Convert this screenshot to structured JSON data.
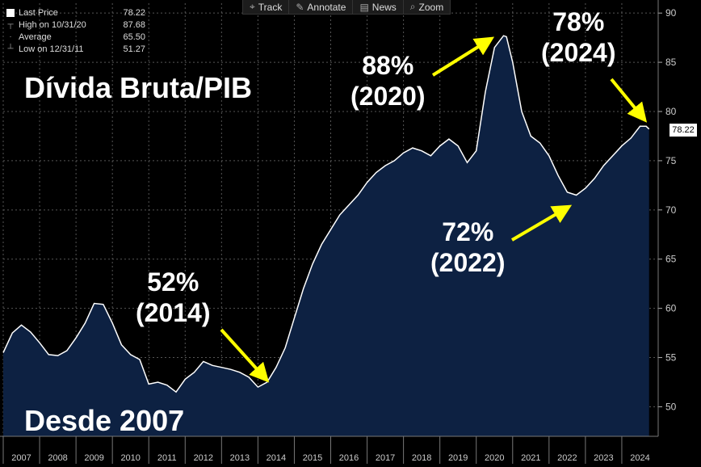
{
  "toolbar": {
    "track": {
      "label": "Track",
      "icon": "crosshair-icon"
    },
    "annotate": {
      "label": "Annotate",
      "icon": "pencil-icon"
    },
    "news": {
      "label": "News",
      "icon": "newspaper-icon"
    },
    "zoom": {
      "label": "Zoom",
      "icon": "magnifier-icon"
    }
  },
  "legend": {
    "last_price": {
      "label": "Last Price",
      "value": "78.22"
    },
    "high": {
      "label": "High on 10/31/20",
      "value": "87.68"
    },
    "average": {
      "label": "Average",
      "value": "65.50"
    },
    "low": {
      "label": "Low on 12/31/11",
      "value": "51.27"
    }
  },
  "chart_data": {
    "type": "area",
    "title": "Dívida Bruta/PIB",
    "subtitle": "Desde 2007",
    "line_color": "#ffffff",
    "fill_color": "#0d2142",
    "background": "#000000",
    "grid": true,
    "ylim": [
      47,
      91
    ],
    "yticks": [
      50,
      55,
      60,
      65,
      70,
      75,
      80,
      85,
      90
    ],
    "xlim": [
      2007.0,
      2025.0
    ],
    "xticks": [
      "2007",
      "2008",
      "2009",
      "2010",
      "2011",
      "2012",
      "2013",
      "2014",
      "2015",
      "2016",
      "2017",
      "2018",
      "2019",
      "2020",
      "2021",
      "2022",
      "2023",
      "2024"
    ],
    "last_value_label": "78.22",
    "x": [
      2007.0,
      2007.25,
      2007.5,
      2007.75,
      2008.0,
      2008.25,
      2008.5,
      2008.75,
      2009.0,
      2009.25,
      2009.5,
      2009.75,
      2010.0,
      2010.25,
      2010.5,
      2010.75,
      2011.0,
      2011.25,
      2011.5,
      2011.75,
      2012.0,
      2012.25,
      2012.5,
      2012.75,
      2013.0,
      2013.25,
      2013.5,
      2013.75,
      2014.0,
      2014.25,
      2014.5,
      2014.75,
      2015.0,
      2015.25,
      2015.5,
      2015.75,
      2016.0,
      2016.25,
      2016.5,
      2016.75,
      2017.0,
      2017.25,
      2017.5,
      2017.75,
      2018.0,
      2018.25,
      2018.5,
      2018.75,
      2019.0,
      2019.25,
      2019.5,
      2019.75,
      2020.0,
      2020.25,
      2020.5,
      2020.75,
      2020.83,
      2021.0,
      2021.25,
      2021.5,
      2021.75,
      2022.0,
      2022.25,
      2022.5,
      2022.75,
      2023.0,
      2023.25,
      2023.5,
      2023.75,
      2024.0,
      2024.25,
      2024.5,
      2024.67,
      2024.75
    ],
    "values": [
      55.5,
      57.5,
      58.3,
      57.6,
      56.5,
      55.3,
      55.2,
      55.7,
      57.0,
      58.5,
      60.5,
      60.4,
      58.5,
      56.3,
      55.3,
      54.8,
      52.3,
      52.5,
      52.2,
      51.5,
      52.8,
      53.5,
      54.6,
      54.2,
      54.0,
      53.8,
      53.5,
      53.0,
      52.0,
      52.5,
      54.0,
      56.0,
      59.0,
      62.0,
      64.5,
      66.5,
      68.0,
      69.5,
      70.5,
      71.5,
      72.8,
      73.8,
      74.5,
      75.0,
      75.8,
      76.3,
      76.0,
      75.5,
      76.5,
      77.2,
      76.5,
      74.8,
      76.0,
      82.0,
      86.5,
      87.7,
      87.6,
      85.0,
      80.0,
      77.5,
      76.8,
      75.5,
      73.5,
      71.8,
      71.5,
      72.2,
      73.2,
      74.5,
      75.5,
      76.5,
      77.3,
      78.5,
      78.5,
      78.22
    ],
    "annotations": [
      {
        "line1": "52%",
        "line2": "(2014)"
      },
      {
        "line1": "88%",
        "line2": "(2020)"
      },
      {
        "line1": "72%",
        "line2": "(2022)"
      },
      {
        "line1": "78%",
        "line2": "(2024)"
      }
    ]
  }
}
